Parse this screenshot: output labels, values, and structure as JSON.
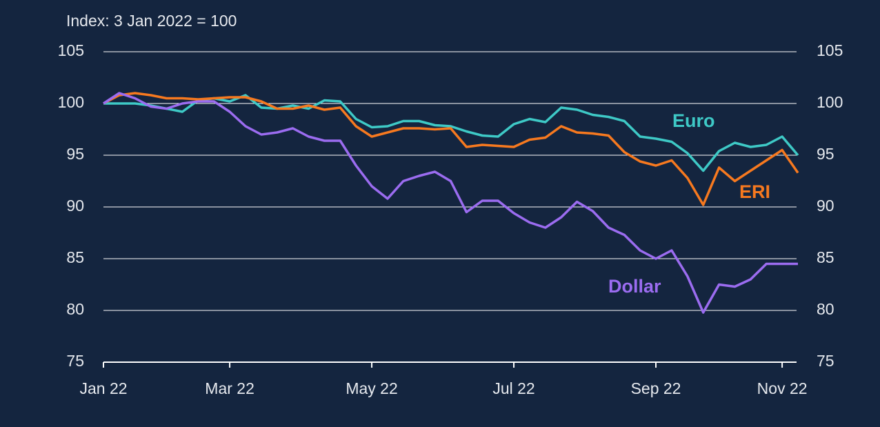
{
  "chart_data": {
    "type": "line",
    "subtitle": "Index: 3 Jan 2022 = 100",
    "categories": [
      "Jan 22",
      null,
      null,
      null,
      null,
      null,
      null,
      null,
      "Mar 22",
      null,
      null,
      null,
      null,
      null,
      null,
      null,
      null,
      "May 22",
      null,
      null,
      null,
      null,
      null,
      null,
      null,
      null,
      "Jul 22",
      null,
      null,
      null,
      null,
      null,
      null,
      null,
      null,
      "Sep 22",
      null,
      null,
      null,
      null,
      null,
      null,
      null,
      "Nov 22",
      null
    ],
    "series": [
      {
        "name": "Euro",
        "color": "#3ec9c6",
        "values": [
          100,
          100,
          100,
          99.8,
          99.5,
          99.2,
          100.3,
          100.5,
          100.2,
          100.8,
          99.6,
          99.5,
          99.8,
          99.5,
          100.3,
          100.2,
          98.5,
          97.7,
          97.8,
          98.3,
          98.3,
          97.9,
          97.8,
          97.3,
          96.9,
          96.8,
          98,
          98.5,
          98.2,
          99.6,
          99.4,
          98.9,
          98.7,
          98.3,
          96.8,
          96.6,
          96.3,
          95.2,
          93.5,
          95.4,
          96.2,
          95.8,
          96,
          96.8,
          95
        ]
      },
      {
        "name": "ERI",
        "color": "#f7791f",
        "values": [
          100,
          100.8,
          101,
          100.8,
          100.5,
          100.5,
          100.4,
          100.5,
          100.6,
          100.6,
          100.2,
          99.5,
          99.5,
          99.8,
          99.4,
          99.6,
          97.8,
          96.8,
          97.2,
          97.6,
          97.6,
          97.5,
          97.6,
          95.8,
          96,
          95.9,
          95.8,
          96.5,
          96.7,
          97.8,
          97.2,
          97.1,
          96.9,
          95.3,
          94.4,
          94,
          94.5,
          92.8,
          90.2,
          93.8,
          92.5,
          93.5,
          94.5,
          95.5,
          93.3
        ]
      },
      {
        "name": "Dollar",
        "color": "#9b6cf0",
        "values": [
          100,
          101,
          100.5,
          99.7,
          99.5,
          100,
          100.2,
          100.2,
          99.2,
          97.8,
          97,
          97.2,
          97.6,
          96.8,
          96.4,
          96.4,
          94,
          92,
          90.8,
          92.5,
          93,
          93.4,
          92.5,
          89.5,
          90.6,
          90.6,
          89.4,
          88.5,
          88,
          89,
          90.5,
          89.6,
          88,
          87.3,
          85.8,
          85,
          85.8,
          83.3,
          79.8,
          82.5,
          82.3,
          83,
          84.5,
          84.5,
          84.5
        ]
      }
    ],
    "ylim": [
      75,
      105
    ],
    "yticks": [
      75,
      80,
      85,
      90,
      95,
      100,
      105
    ],
    "y2lim": [
      75,
      105
    ],
    "y2ticks": [
      75,
      80,
      85,
      90,
      95,
      100,
      105
    ],
    "grid": true
  }
}
